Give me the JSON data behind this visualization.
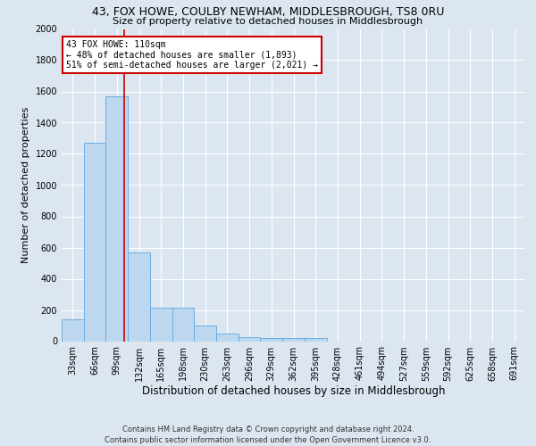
{
  "title1": "43, FOX HOWE, COULBY NEWHAM, MIDDLESBROUGH, TS8 0RU",
  "title2": "Size of property relative to detached houses in Middlesbrough",
  "xlabel": "Distribution of detached houses by size in Middlesbrough",
  "ylabel": "Number of detached properties",
  "footer": "Contains HM Land Registry data © Crown copyright and database right 2024.\nContains public sector information licensed under the Open Government Licence v3.0.",
  "bar_labels": [
    "33sqm",
    "66sqm",
    "99sqm",
    "132sqm",
    "165sqm",
    "198sqm",
    "230sqm",
    "263sqm",
    "296sqm",
    "329sqm",
    "362sqm",
    "395sqm",
    "428sqm",
    "461sqm",
    "494sqm",
    "527sqm",
    "559sqm",
    "592sqm",
    "625sqm",
    "658sqm",
    "691sqm"
  ],
  "bar_values": [
    140,
    1270,
    1570,
    570,
    215,
    215,
    100,
    50,
    25,
    20,
    20,
    20,
    0,
    0,
    0,
    0,
    0,
    0,
    0,
    0,
    0
  ],
  "bar_color": "#bdd7ee",
  "bar_edge_color": "#6aade4",
  "background_color": "#dce6f1",
  "grid_color": "#ffffff",
  "annotation_text": "43 FOX HOWE: 110sqm\n← 48% of detached houses are smaller (1,893)\n51% of semi-detached houses are larger (2,021) →",
  "annotation_box_facecolor": "#ffffff",
  "annotation_box_edgecolor": "#cc0000",
  "ylim": [
    0,
    2000
  ],
  "yticks": [
    0,
    200,
    400,
    600,
    800,
    1000,
    1200,
    1400,
    1600,
    1800,
    2000
  ],
  "red_line_index": 2.34,
  "title1_fontsize": 9,
  "title2_fontsize": 8,
  "ylabel_fontsize": 8,
  "xlabel_fontsize": 8.5,
  "tick_fontsize": 7,
  "annotation_fontsize": 7,
  "footer_fontsize": 6
}
